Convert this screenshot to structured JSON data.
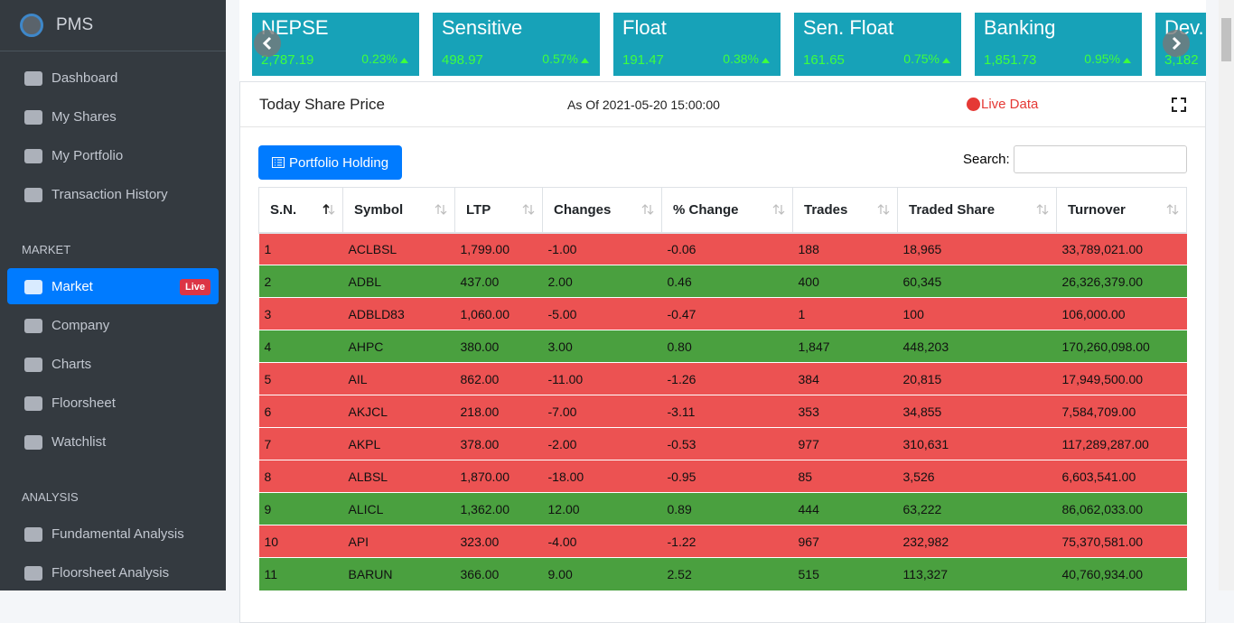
{
  "sidebar": {
    "brand": "PMS",
    "main": [
      "Dashboard",
      "My Shares",
      "My Portfolio",
      "Transaction History"
    ],
    "market_heading": "MARKET",
    "market": [
      {
        "label": "Market",
        "badge": "Live",
        "active": true
      },
      {
        "label": "Company"
      },
      {
        "label": "Charts"
      },
      {
        "label": "Floorsheet"
      },
      {
        "label": "Watchlist"
      }
    ],
    "analysis_heading": "ANALYSIS",
    "analysis": [
      "Fundamental Analysis",
      "Floorsheet Analysis"
    ]
  },
  "indices": [
    {
      "name": "NEPSE",
      "value": "2,787.19",
      "change": "0.23%"
    },
    {
      "name": "Sensitive",
      "value": "498.97",
      "change": "0.57%"
    },
    {
      "name": "Float",
      "value": "191.47",
      "change": "0.38%"
    },
    {
      "name": "Sen. Float",
      "value": "161.65",
      "change": "0.75%"
    },
    {
      "name": "Banking",
      "value": "1,851.73",
      "change": "0.95%"
    },
    {
      "name": "Dev.",
      "value": "3,182"
    }
  ],
  "panel": {
    "title": "Today Share Price",
    "as_of": "As Of 2021-05-20 15:00:00",
    "live": "Live Data",
    "button": "Portfolio Holding",
    "search_label": "Search:"
  },
  "table": {
    "columns": [
      "S.N.",
      "Symbol",
      "LTP",
      "Changes",
      "% Change",
      "Trades",
      "Traded Share",
      "Turnover"
    ],
    "rows": [
      [
        "1",
        "ACLBSL",
        "1,799.00",
        "-1.00",
        "-0.06",
        "188",
        "18,965",
        "33,789,021.00"
      ],
      [
        "2",
        "ADBL",
        "437.00",
        "2.00",
        "0.46",
        "400",
        "60,345",
        "26,326,379.00"
      ],
      [
        "3",
        "ADBLD83",
        "1,060.00",
        "-5.00",
        "-0.47",
        "1",
        "100",
        "106,000.00"
      ],
      [
        "4",
        "AHPC",
        "380.00",
        "3.00",
        "0.80",
        "1,847",
        "448,203",
        "170,260,098.00"
      ],
      [
        "5",
        "AIL",
        "862.00",
        "-11.00",
        "-1.26",
        "384",
        "20,815",
        "17,949,500.00"
      ],
      [
        "6",
        "AKJCL",
        "218.00",
        "-7.00",
        "-3.11",
        "353",
        "34,855",
        "7,584,709.00"
      ],
      [
        "7",
        "AKPL",
        "378.00",
        "-2.00",
        "-0.53",
        "977",
        "310,631",
        "117,289,287.00"
      ],
      [
        "8",
        "ALBSL",
        "1,870.00",
        "-18.00",
        "-0.95",
        "85",
        "3,526",
        "6,603,541.00"
      ],
      [
        "9",
        "ALICL",
        "1,362.00",
        "12.00",
        "0.89",
        "444",
        "63,222",
        "86,062,033.00"
      ],
      [
        "10",
        "API",
        "323.00",
        "-4.00",
        "-1.22",
        "967",
        "232,982",
        "75,370,581.00"
      ],
      [
        "11",
        "BARUN",
        "366.00",
        "9.00",
        "2.52",
        "515",
        "113,327",
        "40,760,934.00"
      ]
    ]
  }
}
